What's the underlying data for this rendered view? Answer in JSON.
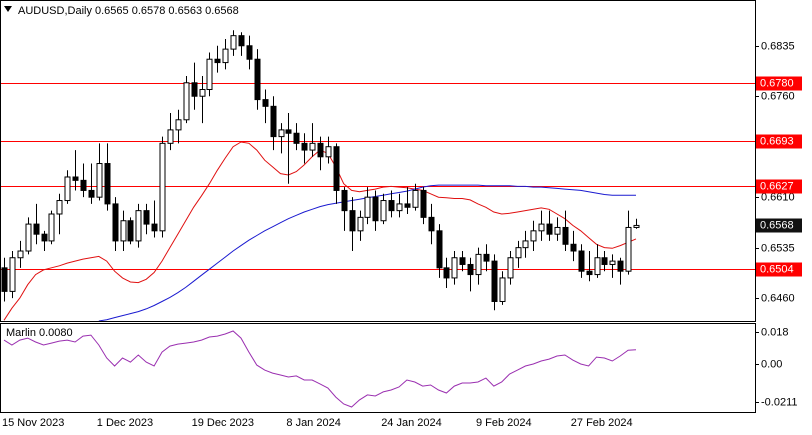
{
  "chart_data": [
    {
      "type": "candlestick",
      "title": "AUDUSD,Daily  0.6565 0.6578 0.6563 0.6568",
      "categories": [
        "15 Nov 2023",
        null,
        null,
        null,
        null,
        null,
        null,
        null,
        null,
        null,
        null,
        null,
        "1 Dec 2023",
        null,
        null,
        null,
        null,
        null,
        null,
        null,
        null,
        null,
        null,
        null,
        "19 Dec 2023",
        null,
        null,
        null,
        null,
        null,
        null,
        null,
        null,
        null,
        null,
        null,
        "8 Jan 2024",
        null,
        null,
        null,
        null,
        null,
        null,
        null,
        null,
        null,
        null,
        null,
        "24 Jan 2024",
        null,
        null,
        null,
        null,
        null,
        null,
        null,
        null,
        null,
        null,
        null,
        "9 Feb 2024",
        null,
        null,
        null,
        null,
        null,
        null,
        null,
        null,
        null,
        null,
        null,
        "27 Feb 2024",
        null,
        null,
        null,
        null,
        null,
        null,
        null,
        null
      ],
      "ohlc": [
        [
          0.6505,
          0.652,
          0.6455,
          0.647
        ],
        [
          0.647,
          0.653,
          0.646,
          0.652
        ],
        [
          0.652,
          0.6545,
          0.6505,
          0.653
        ],
        [
          0.653,
          0.658,
          0.6525,
          0.657
        ],
        [
          0.657,
          0.66,
          0.654,
          0.6555
        ],
        [
          0.6555,
          0.656,
          0.653,
          0.6545
        ],
        [
          0.6545,
          0.659,
          0.654,
          0.6585
        ],
        [
          0.6585,
          0.6615,
          0.6555,
          0.6605
        ],
        [
          0.6605,
          0.665,
          0.66,
          0.664
        ],
        [
          0.664,
          0.668,
          0.662,
          0.6635
        ],
        [
          0.6635,
          0.666,
          0.661,
          0.662
        ],
        [
          0.662,
          0.666,
          0.66,
          0.661
        ],
        [
          0.661,
          0.669,
          0.6605,
          0.666
        ],
        [
          0.666,
          0.669,
          0.659,
          0.66
        ],
        [
          0.66,
          0.661,
          0.653,
          0.6545
        ],
        [
          0.6545,
          0.659,
          0.653,
          0.6575
        ],
        [
          0.6575,
          0.658,
          0.654,
          0.6545
        ],
        [
          0.6545,
          0.66,
          0.6535,
          0.659
        ],
        [
          0.659,
          0.66,
          0.6555,
          0.657
        ],
        [
          0.657,
          0.6605,
          0.655,
          0.656
        ],
        [
          0.656,
          0.67,
          0.655,
          0.669
        ],
        [
          0.669,
          0.6735,
          0.668,
          0.671
        ],
        [
          0.671,
          0.674,
          0.669,
          0.6725
        ],
        [
          0.6725,
          0.679,
          0.672,
          0.678
        ],
        [
          0.678,
          0.681,
          0.674,
          0.676
        ],
        [
          0.676,
          0.679,
          0.672,
          0.677
        ],
        [
          0.677,
          0.6825,
          0.676,
          0.6815
        ],
        [
          0.6815,
          0.6835,
          0.6795,
          0.681
        ],
        [
          0.681,
          0.6845,
          0.68,
          0.683
        ],
        [
          0.683,
          0.6858,
          0.682,
          0.685
        ],
        [
          0.685,
          0.6855,
          0.682,
          0.6835
        ],
        [
          0.6835,
          0.685,
          0.68,
          0.6815
        ],
        [
          0.6815,
          0.683,
          0.674,
          0.6755
        ],
        [
          0.6755,
          0.677,
          0.672,
          0.6745
        ],
        [
          0.6745,
          0.676,
          0.668,
          0.67
        ],
        [
          0.67,
          0.672,
          0.6675,
          0.671
        ],
        [
          0.671,
          0.6735,
          0.663,
          0.6705
        ],
        [
          0.6705,
          0.672,
          0.668,
          0.669
        ],
        [
          0.669,
          0.6705,
          0.666,
          0.668
        ],
        [
          0.668,
          0.672,
          0.667,
          0.669
        ],
        [
          0.669,
          0.67,
          0.665,
          0.667
        ],
        [
          0.667,
          0.67,
          0.666,
          0.6685
        ],
        [
          0.6685,
          0.669,
          0.66,
          0.662
        ],
        [
          0.662,
          0.6625,
          0.656,
          0.659
        ],
        [
          0.659,
          0.661,
          0.653,
          0.656
        ],
        [
          0.656,
          0.659,
          0.6545,
          0.658
        ],
        [
          0.658,
          0.6625,
          0.657,
          0.661
        ],
        [
          0.661,
          0.662,
          0.656,
          0.6575
        ],
        [
          0.6575,
          0.6615,
          0.657,
          0.6605
        ],
        [
          0.6605,
          0.662,
          0.658,
          0.659
        ],
        [
          0.659,
          0.6615,
          0.658,
          0.66
        ],
        [
          0.66,
          0.6625,
          0.6585,
          0.6595
        ],
        [
          0.6595,
          0.663,
          0.659,
          0.662
        ],
        [
          0.662,
          0.6625,
          0.657,
          0.658
        ],
        [
          0.658,
          0.66,
          0.654,
          0.656
        ],
        [
          0.656,
          0.657,
          0.649,
          0.6505
        ],
        [
          0.6505,
          0.652,
          0.6475,
          0.649
        ],
        [
          0.649,
          0.653,
          0.648,
          0.652
        ],
        [
          0.652,
          0.653,
          0.65,
          0.651
        ],
        [
          0.651,
          0.652,
          0.647,
          0.6495
        ],
        [
          0.6495,
          0.6535,
          0.648,
          0.6525
        ],
        [
          0.6525,
          0.654,
          0.65,
          0.6515
        ],
        [
          0.6515,
          0.6525,
          0.6442,
          0.6455
        ],
        [
          0.6455,
          0.65,
          0.645,
          0.649
        ],
        [
          0.649,
          0.653,
          0.648,
          0.652
        ],
        [
          0.652,
          0.6545,
          0.6505,
          0.6535
        ],
        [
          0.6535,
          0.656,
          0.652,
          0.6545
        ],
        [
          0.6545,
          0.6575,
          0.653,
          0.656
        ],
        [
          0.656,
          0.659,
          0.6545,
          0.657
        ],
        [
          0.657,
          0.659,
          0.6545,
          0.6555
        ],
        [
          0.6555,
          0.658,
          0.6545,
          0.6565
        ],
        [
          0.6565,
          0.659,
          0.653,
          0.654
        ],
        [
          0.654,
          0.656,
          0.6515,
          0.653
        ],
        [
          0.653,
          0.654,
          0.649,
          0.65
        ],
        [
          0.65,
          0.653,
          0.6485,
          0.6495
        ],
        [
          0.6495,
          0.654,
          0.649,
          0.652
        ],
        [
          0.652,
          0.653,
          0.65,
          0.651
        ],
        [
          0.651,
          0.6525,
          0.649,
          0.6515
        ],
        [
          0.6515,
          0.652,
          0.648,
          0.65
        ],
        [
          0.65,
          0.659,
          0.6495,
          0.6565
        ],
        [
          0.6565,
          0.6578,
          0.6563,
          0.6568
        ]
      ],
      "overlays": [
        {
          "color": "#e01010",
          "values": [
            0.6427,
            0.6445,
            0.646,
            0.648,
            0.6495,
            0.6502,
            0.6505,
            0.6508,
            0.6512,
            0.6515,
            0.6518,
            0.652,
            0.6522,
            0.6515,
            0.65,
            0.649,
            0.6484,
            0.6483,
            0.6488,
            0.6498,
            0.6515,
            0.6535,
            0.6555,
            0.6575,
            0.6595,
            0.6612,
            0.663,
            0.665,
            0.6668,
            0.6685,
            0.6692,
            0.669,
            0.668,
            0.6665,
            0.6655,
            0.6645,
            0.6643,
            0.6648,
            0.6658,
            0.667,
            0.668,
            0.6675,
            0.6655,
            0.663,
            0.662,
            0.6618,
            0.662,
            0.6622,
            0.6625,
            0.6626,
            0.6625,
            0.6624,
            0.6622,
            0.662,
            0.6615,
            0.661,
            0.6609,
            0.6608,
            0.6608,
            0.6606,
            0.66,
            0.6595,
            0.6588,
            0.6585,
            0.6586,
            0.6588,
            0.659,
            0.6592,
            0.6594,
            0.6592,
            0.6585,
            0.6578,
            0.6568,
            0.656,
            0.655,
            0.654,
            0.6535,
            0.6534,
            0.6538,
            0.6543,
            0.6548
          ]
        },
        {
          "color": "#1a1ad0",
          "values": [
            null,
            null,
            null,
            null,
            null,
            null,
            null,
            null,
            null,
            null,
            null,
            null,
            0.6426,
            0.6428,
            0.6431,
            0.6434,
            0.6437,
            0.644,
            0.6444,
            0.6449,
            0.6455,
            0.6461,
            0.6468,
            0.6476,
            0.6485,
            0.6494,
            0.6503,
            0.6512,
            0.6521,
            0.653,
            0.6538,
            0.6546,
            0.6553,
            0.656,
            0.6566,
            0.6572,
            0.6578,
            0.6583,
            0.6588,
            0.6592,
            0.6596,
            0.6599,
            0.6601,
            0.6603,
            0.6605,
            0.6607,
            0.6609,
            0.6611,
            0.6613,
            0.6615,
            0.6617,
            0.6619,
            0.6622,
            0.6625,
            0.6627,
            0.6628,
            0.6628,
            0.6628,
            0.6628,
            0.6628,
            0.6628,
            0.6627,
            0.6627,
            0.6627,
            0.6627,
            0.6626,
            0.6626,
            0.6625,
            0.6625,
            0.6624,
            0.6623,
            0.6622,
            0.6621,
            0.662,
            0.6618,
            0.6616,
            0.6614,
            0.6613,
            0.6613,
            0.6613,
            0.6613
          ]
        }
      ],
      "levels": [
        {
          "value": 0.678,
          "label": "0.6780"
        },
        {
          "value": 0.6693,
          "label": "0.6693"
        },
        {
          "value": 0.6627,
          "label": "0.6627"
        },
        {
          "value": 0.6504,
          "label": "0.6504"
        }
      ],
      "level_color": "#ff0000",
      "last_price": {
        "value": 0.6568,
        "label": "0.6568"
      },
      "ylim": [
        0.6426,
        0.6903
      ],
      "yticks": [
        0.6835,
        {
          "value": 0.676,
          "label": "0.6760"
        },
        {
          "value": 0.661,
          "label": "0.6610"
        },
        0.6535,
        {
          "value": 0.646,
          "label": "0.6460"
        }
      ]
    },
    {
      "type": "line",
      "title": "Marlin 0.0080",
      "color": "#9a2fb0",
      "values": [
        0.0135,
        0.0107,
        0.0135,
        0.0146,
        0.0124,
        0.0107,
        0.0118,
        0.0129,
        0.0135,
        0.0124,
        0.0157,
        0.0163,
        0.0107,
        0.0034,
        -0.0011,
        0.0034,
        0.0011,
        0.0051,
        0.0011,
        -0.0011,
        0.0067,
        0.0101,
        0.0112,
        0.0118,
        0.0124,
        0.0135,
        0.0152,
        0.0157,
        0.0169,
        0.0186,
        0.0146,
        0.0067,
        -0.0006,
        -0.0034,
        -0.0051,
        -0.0062,
        -0.0073,
        -0.0067,
        -0.009,
        -0.009,
        -0.0112,
        -0.0135,
        -0.0186,
        -0.0225,
        -0.0242,
        -0.0202,
        -0.0174,
        -0.018,
        -0.0157,
        -0.0146,
        -0.0129,
        -0.009,
        -0.0101,
        -0.0124,
        -0.0118,
        -0.0146,
        -0.0163,
        -0.0124,
        -0.0107,
        -0.0107,
        -0.0101,
        -0.0079,
        -0.0124,
        -0.0101,
        -0.0056,
        -0.0034,
        -0.0011,
        0.0,
        0.0017,
        0.0028,
        0.0045,
        0.0051,
        0.0022,
        0.0,
        -0.0011,
        0.0039,
        0.0034,
        0.0017,
        0.0045,
        0.0078,
        0.008
      ],
      "ylim": [
        -0.027,
        0.0231
      ],
      "yticks": [
        0.018,
        {
          "value": 0,
          "label": "0.00"
        },
        -0.0211
      ]
    }
  ]
}
